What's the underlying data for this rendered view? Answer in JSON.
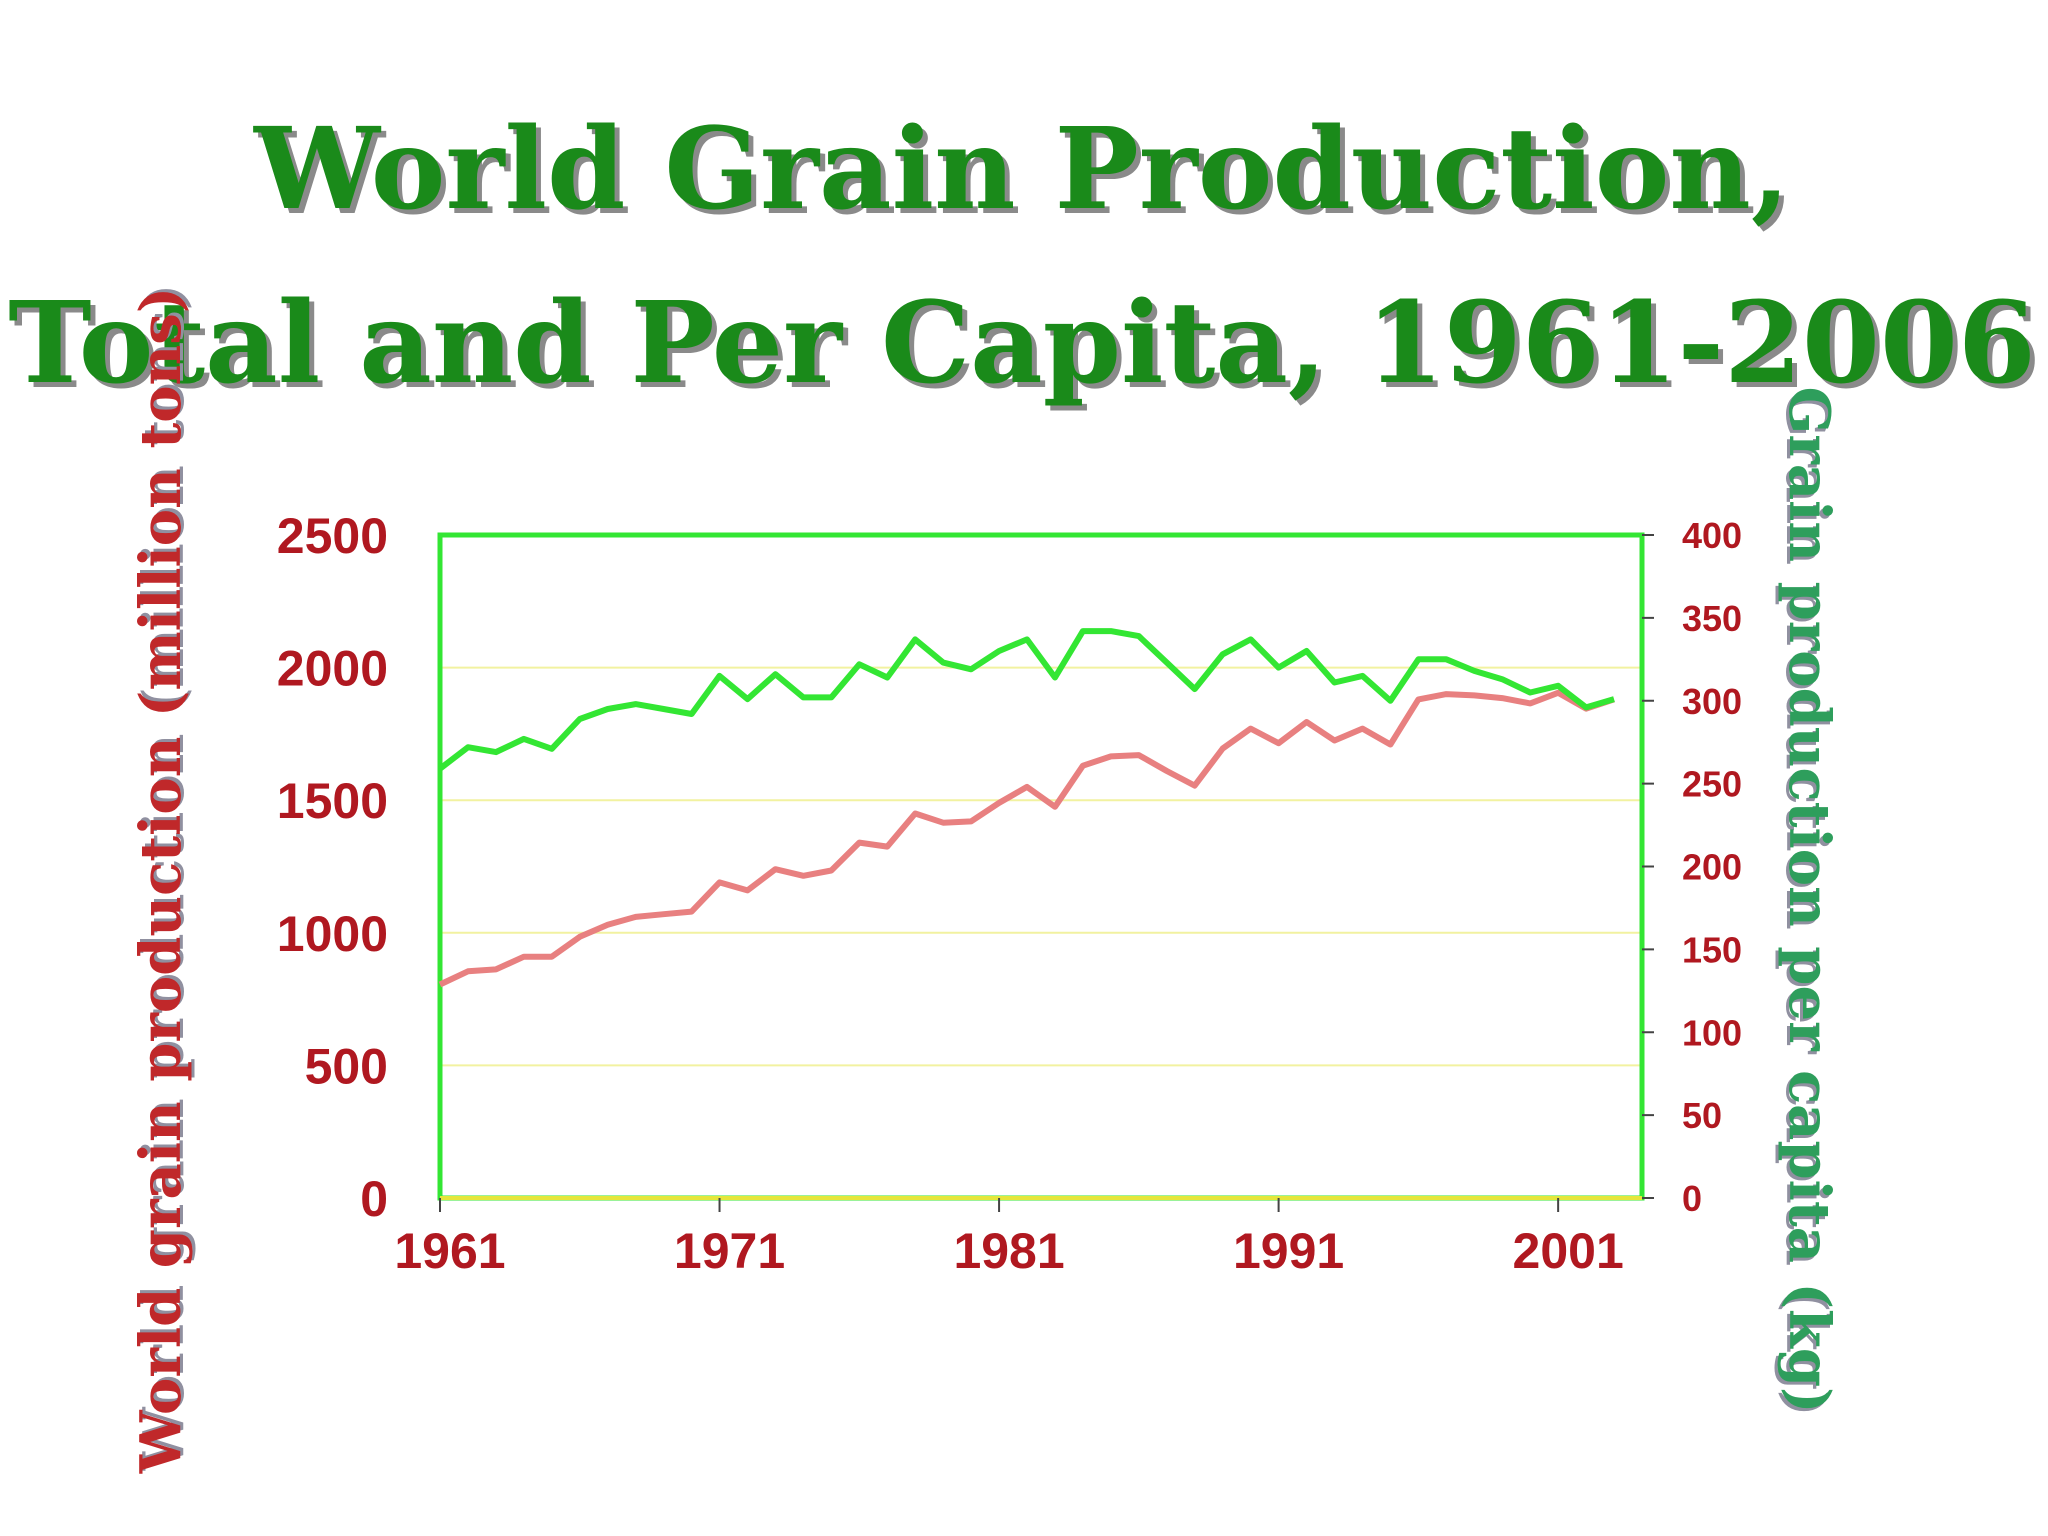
{
  "colors": {
    "title": "#1a8a1a",
    "total_line": "#e88080",
    "per_capita_line": "#33e633",
    "frame": "#33e633",
    "gridline": "#f2f2a0",
    "tick_text": "#b01820",
    "ylabel_left": "#c0282a",
    "ylabel_right": "#2e9e5c"
  },
  "chart_data": {
    "type": "line",
    "title": "World Grain Production, Total and Per Capita, 1961-2006",
    "title_lines": [
      "World Grain Production,",
      "Total and Per Capita, 1961-2006"
    ],
    "xlabel": "",
    "ylabel": "World grain production (million tons)",
    "ylabel_right": "Grain production per capita (kg)",
    "xlim": [
      1961,
      2004
    ],
    "ylim": [
      0,
      2500
    ],
    "ylim_right": [
      0,
      400
    ],
    "x_ticks": [
      1961,
      1971,
      1981,
      1991,
      2001
    ],
    "y_ticks": [
      0,
      500,
      1000,
      1500,
      2000,
      2500
    ],
    "y_ticks_right": [
      0,
      50,
      100,
      150,
      200,
      250,
      300,
      350,
      400
    ],
    "x_tick_labels": [
      "1961",
      "1971",
      "1981",
      "1991",
      "2001"
    ],
    "y_tick_labels": [
      "0",
      "500",
      "1000",
      "1500",
      "2000",
      "2500"
    ],
    "y_tick_labels_right": [
      "0",
      "50",
      "100",
      "150",
      "200",
      "250",
      "300",
      "350",
      "400"
    ],
    "x": [
      1961,
      1962,
      1963,
      1964,
      1965,
      1966,
      1967,
      1968,
      1969,
      1970,
      1971,
      1972,
      1973,
      1974,
      1975,
      1976,
      1977,
      1978,
      1979,
      1980,
      1981,
      1982,
      1983,
      1984,
      1985,
      1986,
      1987,
      1988,
      1989,
      1990,
      1991,
      1992,
      1993,
      1994,
      1995,
      1996,
      1997,
      1998,
      1999,
      2000,
      2001,
      2002,
      2003
    ],
    "series": [
      {
        "name": "World grain production (million tons)",
        "axis": "left",
        "values": [
          805,
          855,
          862,
          910,
          910,
          985,
          1030,
          1060,
          1070,
          1080,
          1190,
          1160,
          1240,
          1215,
          1235,
          1340,
          1325,
          1450,
          1415,
          1420,
          1490,
          1550,
          1475,
          1630,
          1665,
          1670,
          1610,
          1555,
          1695,
          1770,
          1715,
          1795,
          1725,
          1770,
          1710,
          1880,
          1900,
          1895,
          1885,
          1865,
          1905,
          1845,
          1880
        ]
      },
      {
        "name": "Grain production per capita (kg)",
        "axis": "right",
        "values": [
          259,
          272,
          269,
          277,
          271,
          289,
          295,
          298,
          295,
          292,
          315,
          301,
          316,
          302,
          302,
          322,
          314,
          337,
          323,
          319,
          330,
          337,
          314,
          342,
          342,
          339,
          323,
          307,
          328,
          337,
          320,
          330,
          311,
          315,
          300,
          325,
          325,
          318,
          313,
          305,
          309,
          296,
          301
        ]
      }
    ]
  }
}
